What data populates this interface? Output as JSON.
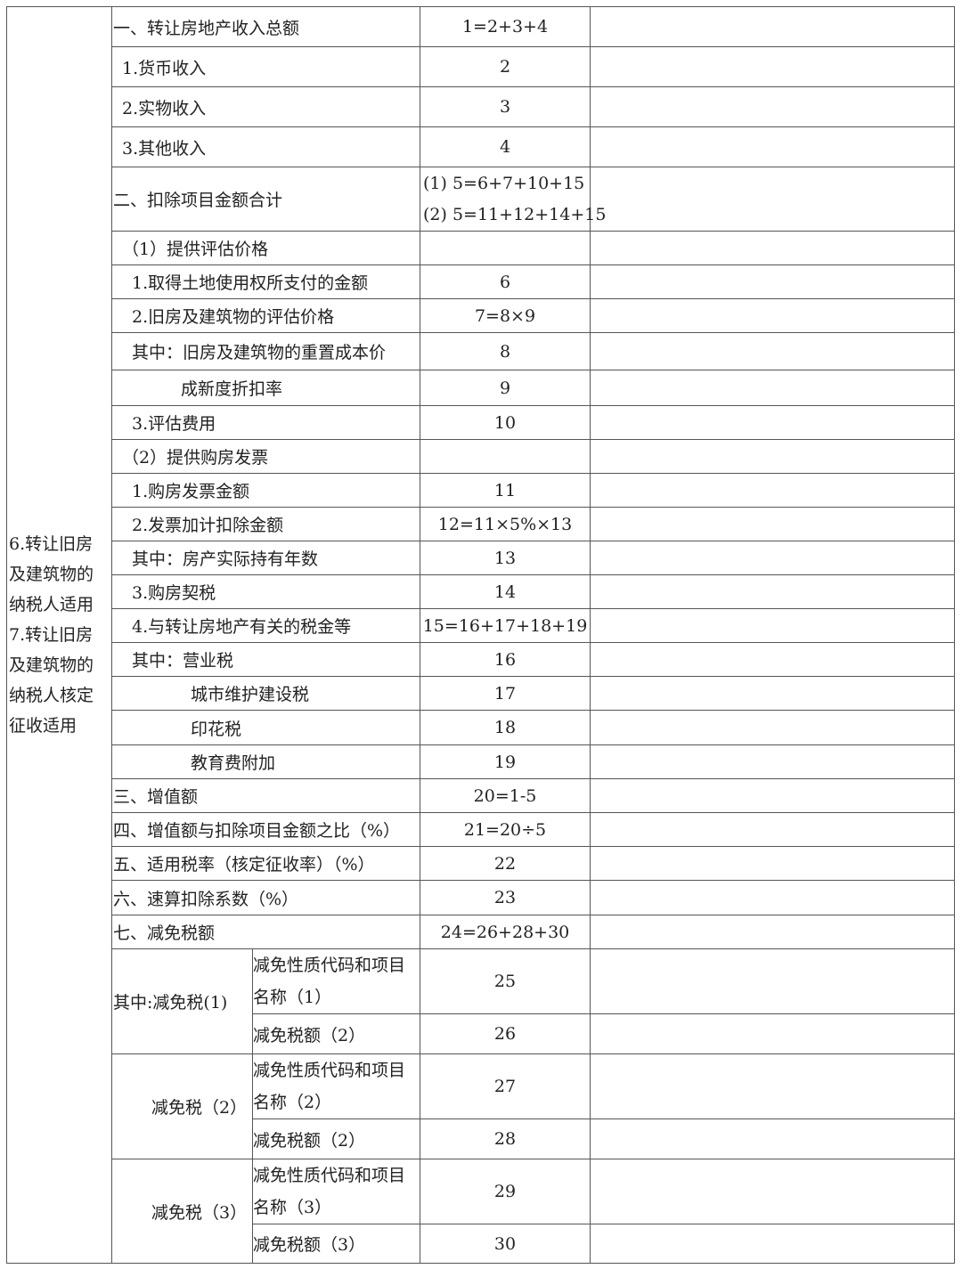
{
  "side_label": [
    "6.转让旧房",
    "及建筑物的",
    "纳税人适用",
    "7.转让旧房",
    "及建筑物的",
    "纳税人核定",
    "征收适用"
  ],
  "rows": [
    {
      "label": "一、转让房地产收入总额",
      "indent": 0,
      "code": [
        "1=2+3+4"
      ]
    },
    {
      "label": "1.货币收入",
      "indent": 1,
      "code": [
        "2"
      ]
    },
    {
      "label": "2.实物收入",
      "indent": 1,
      "code": [
        "3"
      ]
    },
    {
      "label": "3.其他收入",
      "indent": 1,
      "code": [
        "4"
      ]
    },
    {
      "label": "二、扣除项目金额合计",
      "indent": 0,
      "code": [
        "(1) 5=6+7+10+15",
        "(2) 5=11+12+14+15"
      ]
    },
    {
      "label": "（1）提供评估价格",
      "indent": 1,
      "code": [
        ""
      ]
    },
    {
      "label": "1.取得土地使用权所支付的金额",
      "indent": 2,
      "code": [
        "6"
      ]
    },
    {
      "label": "2.旧房及建筑物的评估价格",
      "indent": 2,
      "code": [
        "7=8×9"
      ]
    },
    {
      "label": "其中：旧房及建筑物的重置成本价",
      "indent": 2,
      "code": [
        "8"
      ]
    },
    {
      "label": "成新度折扣率",
      "indent": 3,
      "code": [
        "9"
      ]
    },
    {
      "label": "3.评估费用",
      "indent": 2,
      "code": [
        "10"
      ]
    },
    {
      "label": "（2）提供购房发票",
      "indent": 1,
      "code": [
        ""
      ]
    },
    {
      "label": "1.购房发票金额",
      "indent": 2,
      "code": [
        "11"
      ]
    },
    {
      "label": "2.发票加计扣除金额",
      "indent": 2,
      "code": [
        "12=11×5%×13"
      ]
    },
    {
      "label": "其中：房产实际持有年数",
      "indent": 2,
      "code": [
        "13"
      ]
    },
    {
      "label": "3.购房契税",
      "indent": 2,
      "code": [
        "14"
      ]
    },
    {
      "label": "4.与转让房地产有关的税金等",
      "indent": 2,
      "code": [
        "15=16+17+18+19"
      ]
    },
    {
      "label": "其中：营业税",
      "indent": 2,
      "code": [
        "16"
      ]
    },
    {
      "label": "城市维护建设税",
      "indent": 4,
      "code": [
        "17"
      ]
    },
    {
      "label": "印花税",
      "indent": 4,
      "code": [
        "18"
      ]
    },
    {
      "label": "教育费附加",
      "indent": 4,
      "code": [
        "19"
      ]
    },
    {
      "label": "三、增值额",
      "indent": 0,
      "code": [
        "20=1-5"
      ]
    },
    {
      "label": "四、增值额与扣除项目金额之比（%）",
      "indent": 0,
      "code": [
        "21=20÷5"
      ]
    },
    {
      "label": "五、适用税率（核定征收率）（%）",
      "indent": 0,
      "code": [
        "22"
      ]
    },
    {
      "label": "六、速算扣除系数（%）",
      "indent": 0,
      "code": [
        "23"
      ]
    },
    {
      "label": "七、减免税额",
      "indent": 0,
      "code": [
        "24=26+28+30"
      ]
    }
  ],
  "reliefs": [
    {
      "group": "其中:减免税(1)",
      "name_label": "减免性质代码和项目名称（1）",
      "name_code": "25",
      "amount_label": "减免税额（2）",
      "amount_code": "26"
    },
    {
      "group": "减免税（2）",
      "name_label": "减免性质代码和项目名称（2）",
      "name_code": "27",
      "amount_label": "减免税额（2）",
      "amount_code": "28"
    },
    {
      "group": "减免税（3）",
      "name_label": "减免性质代码和项目名称（3）",
      "name_code": "29",
      "amount_label": "减免税额（3）",
      "amount_code": "30"
    }
  ]
}
